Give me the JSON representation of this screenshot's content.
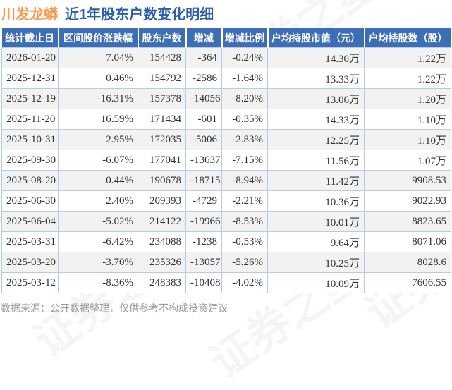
{
  "title": {
    "stock_name": "川发龙蟒",
    "subtitle": "近1年股东户数变化明细"
  },
  "watermark": "证券之星",
  "footer": "数据来源：公开数据整理，仅供参考不构成投资建议",
  "colors": {
    "accent_orange": "#fa9a50",
    "title_blue": "#2d5fa9",
    "header_bg": "#3d6eb5",
    "up_red": "#e62b2b",
    "down_green": "#21a15a",
    "cell_border": "#b0cde9",
    "alt_row_bg": "#f2f2f2",
    "footer_gray": "#999999"
  },
  "chart_data": {
    "type": "table",
    "title": "川发龙蟒 近1年股东户数变化明细",
    "legend_position": "none",
    "columns": [
      "统计截止日",
      "区间股价涨跌幅",
      "股东户数",
      "增减",
      "增减比例",
      "户均持股市值（元）",
      "户均持股数（股）"
    ],
    "column_names": [
      "stat-date-cell",
      "price-change-cell",
      "holder-count-cell",
      "delta-cell",
      "delta-pct-cell",
      "avg-holding-value-cell",
      "avg-holding-shares-cell"
    ],
    "rows": [
      [
        "2026-01-20",
        "7.04%",
        "154428",
        "-364",
        "-0.24%",
        "14.30万",
        "1.22万"
      ],
      [
        "2025-12-31",
        "0.46%",
        "154792",
        "-2586",
        "-1.64%",
        "13.33万",
        "1.22万"
      ],
      [
        "2025-12-19",
        "-16.31%",
        "157378",
        "-14056",
        "-8.20%",
        "13.06万",
        "1.20万"
      ],
      [
        "2025-11-20",
        "16.59%",
        "171434",
        "-601",
        "-0.35%",
        "14.33万",
        "1.10万"
      ],
      [
        "2025-10-31",
        "2.95%",
        "172035",
        "-5006",
        "-2.83%",
        "12.25万",
        "1.10万"
      ],
      [
        "2025-09-30",
        "-6.07%",
        "177041",
        "-13637",
        "-7.15%",
        "11.56万",
        "1.07万"
      ],
      [
        "2025-08-20",
        "0.44%",
        "190678",
        "-18715",
        "-8.94%",
        "11.42万",
        "9908.53"
      ],
      [
        "2025-06-30",
        "2.40%",
        "209393",
        "-4729",
        "-2.21%",
        "10.36万",
        "9022.93"
      ],
      [
        "2025-06-04",
        "-5.02%",
        "214122",
        "-19966",
        "-8.53%",
        "10.01万",
        "8823.65"
      ],
      [
        "2025-03-31",
        "-6.42%",
        "234088",
        "-1238",
        "-0.53%",
        "9.64万",
        "8071.06"
      ],
      [
        "2025-03-20",
        "-3.70%",
        "235326",
        "-13057",
        "-5.26%",
        "10.25万",
        "8028.6"
      ],
      [
        "2025-03-12",
        "-8.36%",
        "248383",
        "-10408",
        "-4.02%",
        "10.09万",
        "7606.55"
      ]
    ]
  }
}
